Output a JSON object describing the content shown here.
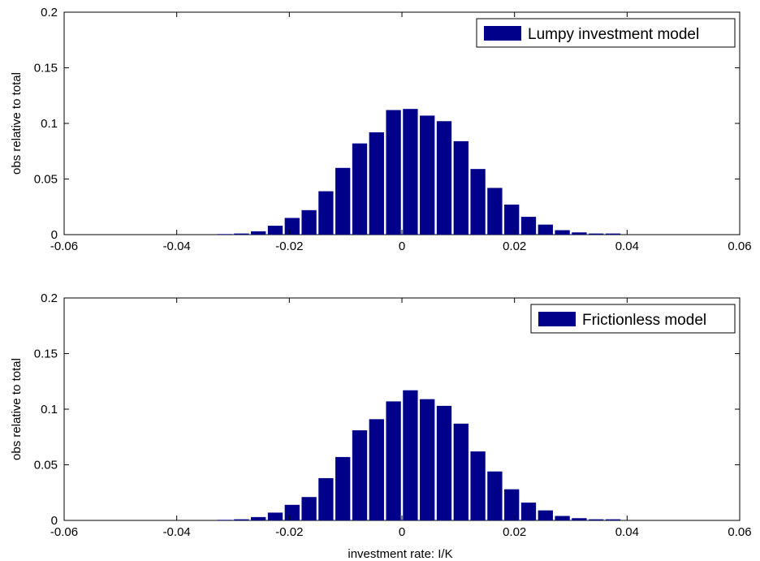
{
  "chart_data": [
    {
      "type": "bar",
      "title": "",
      "xlabel": "",
      "ylabel": "obs relative to total",
      "xlim": [
        -0.06,
        0.06
      ],
      "ylim": [
        0,
        0.2
      ],
      "xticks": [
        -0.06,
        -0.04,
        -0.02,
        0,
        0.02,
        0.04,
        0.06
      ],
      "xtick_labels": [
        "-0.06",
        "-0.04",
        "-0.02",
        "0",
        "0.02",
        "0.04",
        "0.06"
      ],
      "yticks": [
        0,
        0.05,
        0.1,
        0.15,
        0.2
      ],
      "ytick_labels": [
        "0",
        "0.05",
        "0.1",
        "0.15",
        "0.2"
      ],
      "legend": "top-right",
      "bar_color": "#00008b",
      "series": [
        {
          "name": "Lumpy investment model",
          "x": [
            -0.0315,
            -0.0285,
            -0.0255,
            -0.0225,
            -0.0195,
            -0.0165,
            -0.0135,
            -0.0105,
            -0.0075,
            -0.0045,
            -0.0015,
            0.0015,
            0.0045,
            0.0075,
            0.0105,
            0.0135,
            0.0165,
            0.0195,
            0.0225,
            0.0255,
            0.0285,
            0.0315,
            0.0345,
            0.0375
          ],
          "values": [
            0.0005,
            0.001,
            0.003,
            0.008,
            0.015,
            0.022,
            0.039,
            0.06,
            0.082,
            0.092,
            0.112,
            0.113,
            0.107,
            0.102,
            0.084,
            0.059,
            0.042,
            0.027,
            0.016,
            0.009,
            0.004,
            0.002,
            0.001,
            0.001
          ]
        }
      ]
    },
    {
      "type": "bar",
      "title": "",
      "xlabel": "investment rate: I/K",
      "ylabel": "obs relative to total",
      "xlim": [
        -0.06,
        0.06
      ],
      "ylim": [
        0,
        0.2
      ],
      "xticks": [
        -0.06,
        -0.04,
        -0.02,
        0,
        0.02,
        0.04,
        0.06
      ],
      "xtick_labels": [
        "-0.06",
        "-0.04",
        "-0.02",
        "0",
        "0.02",
        "0.04",
        "0.06"
      ],
      "yticks": [
        0,
        0.05,
        0.1,
        0.15,
        0.2
      ],
      "ytick_labels": [
        "0",
        "0.05",
        "0.1",
        "0.15",
        "0.2"
      ],
      "legend": "top-right",
      "bar_color": "#00008b",
      "series": [
        {
          "name": "Frictionless model",
          "x": [
            -0.0315,
            -0.0285,
            -0.0255,
            -0.0225,
            -0.0195,
            -0.0165,
            -0.0135,
            -0.0105,
            -0.0075,
            -0.0045,
            -0.0015,
            0.0015,
            0.0045,
            0.0075,
            0.0105,
            0.0135,
            0.0165,
            0.0195,
            0.0225,
            0.0255,
            0.0285,
            0.0315,
            0.0345,
            0.0375
          ],
          "values": [
            0.0005,
            0.001,
            0.003,
            0.007,
            0.014,
            0.021,
            0.038,
            0.057,
            0.081,
            0.091,
            0.107,
            0.117,
            0.109,
            0.103,
            0.087,
            0.062,
            0.044,
            0.028,
            0.016,
            0.009,
            0.004,
            0.002,
            0.001,
            0.001
          ]
        }
      ]
    }
  ]
}
